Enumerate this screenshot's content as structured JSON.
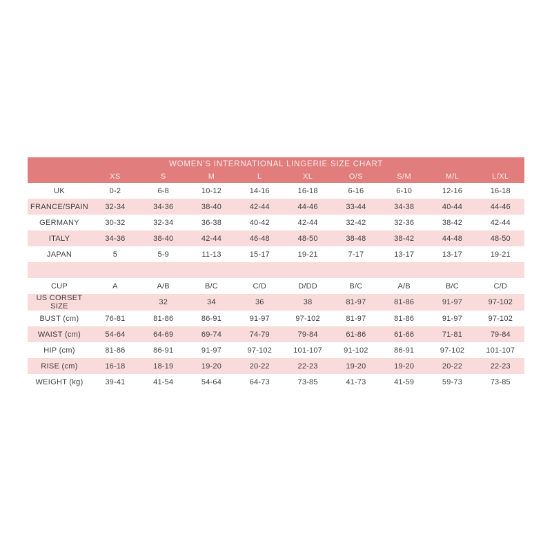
{
  "chart_data": {
    "type": "table",
    "title": "WOMEN'S INTERNATIONAL LINGERIE SIZE CHART",
    "columns": [
      "",
      "XS",
      "S",
      "M",
      "L",
      "XL",
      "O/S",
      "S/M",
      "M/L",
      "L/XL"
    ],
    "rows": [
      {
        "label": "UK",
        "values": [
          "0-2",
          "6-8",
          "10-12",
          "14-16",
          "16-18",
          "6-16",
          "6-10",
          "12-16",
          "16-18"
        ]
      },
      {
        "label": "FRANCE/SPAIN",
        "values": [
          "32-34",
          "34-36",
          "38-40",
          "42-44",
          "44-46",
          "33-44",
          "34-38",
          "40-44",
          "44-46"
        ]
      },
      {
        "label": "GERMANY",
        "values": [
          "30-32",
          "32-34",
          "36-38",
          "40-42",
          "42-44",
          "32-42",
          "32-36",
          "38-42",
          "42-44"
        ]
      },
      {
        "label": "ITALY",
        "values": [
          "34-36",
          "38-40",
          "42-44",
          "46-48",
          "48-50",
          "38-48",
          "38-42",
          "44-48",
          "48-50"
        ]
      },
      {
        "label": "JAPAN",
        "values": [
          "5",
          "5-9",
          "11-13",
          "15-17",
          "19-21",
          "7-17",
          "13-17",
          "13-17",
          "19-21"
        ]
      },
      {
        "label": "",
        "values": [
          "",
          "",
          "",
          "",
          "",
          "",
          "",
          "",
          ""
        ]
      },
      {
        "label": "CUP",
        "values": [
          "A",
          "A/B",
          "B/C",
          "C/D",
          "D/DD",
          "B/C",
          "A/B",
          "B/C",
          "C/D"
        ]
      },
      {
        "label": "US CORSET SIZE",
        "values": [
          "",
          "32",
          "34",
          "36",
          "38",
          "81-97",
          "81-86",
          "91-97",
          "97-102"
        ]
      },
      {
        "label": "BUST (cm)",
        "values": [
          "76-81",
          "81-86",
          "86-91",
          "91-97",
          "97-102",
          "81-97",
          "81-86",
          "91-97",
          "97-102"
        ]
      },
      {
        "label": "WAIST (cm)",
        "values": [
          "54-64",
          "64-69",
          "69-74",
          "74-79",
          "79-84",
          "61-86",
          "61-66",
          "71-81",
          "79-84"
        ]
      },
      {
        "label": "HIP (cm)",
        "values": [
          "81-86",
          "86-91",
          "91-97",
          "97-102",
          "101-107",
          "91-102",
          "86-91",
          "97-102",
          "101-107"
        ]
      },
      {
        "label": "RISE (cm)",
        "values": [
          "16-18",
          "18-19",
          "19-20",
          "20-22",
          "22-23",
          "19-20",
          "19-20",
          "20-22",
          "22-23"
        ]
      },
      {
        "label": "WEIGHT (kg)",
        "values": [
          "39-41",
          "41-54",
          "54-64",
          "64-73",
          "73-85",
          "41-73",
          "41-59",
          "59-73",
          "73-85"
        ]
      }
    ],
    "layout": {
      "grid": false,
      "alternating_row_stripes": true,
      "header_position": "top"
    }
  },
  "style": {
    "header_bg": "#e17d7d",
    "header_text": "#f9ecec",
    "row_pink": "#f9dbdb",
    "row_white": "#ffffff",
    "body_text": "#3e3e3e"
  }
}
